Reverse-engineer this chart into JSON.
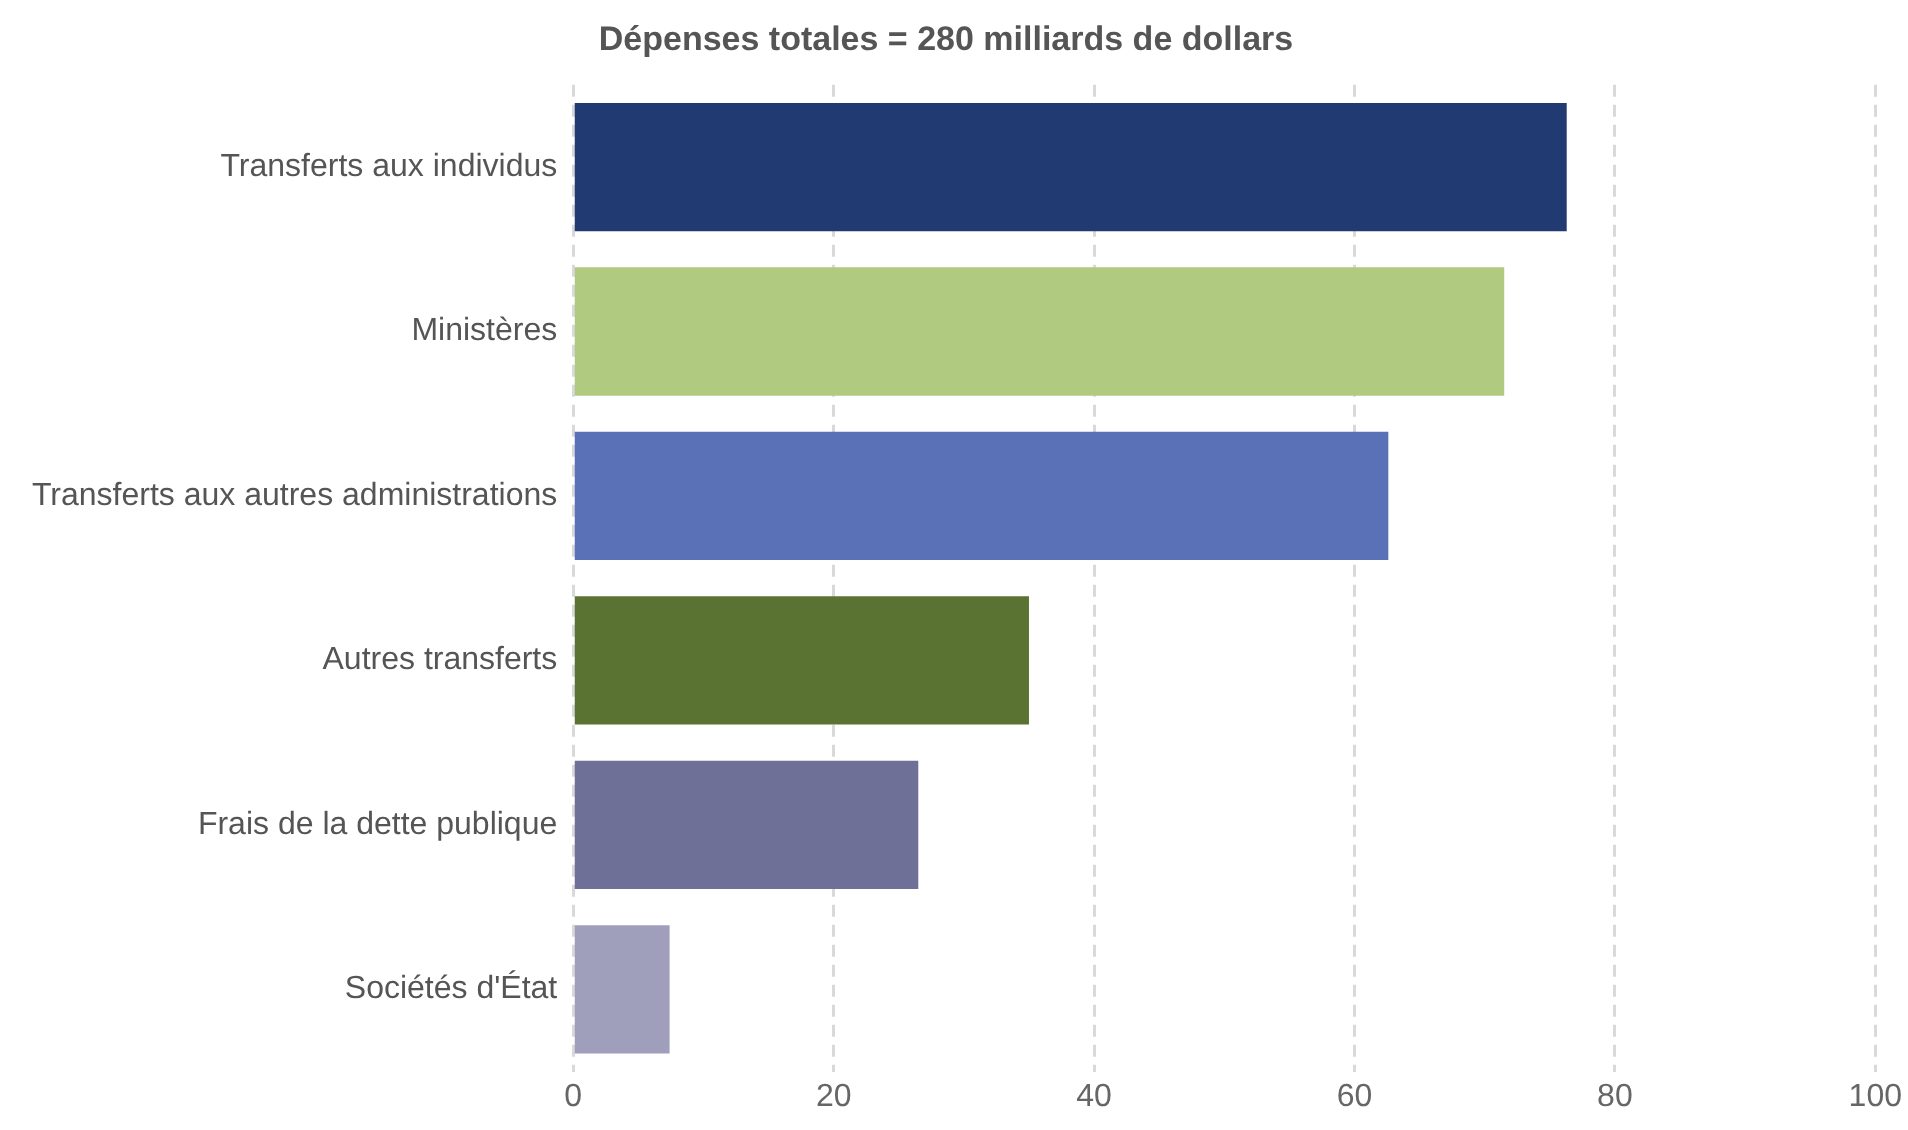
{
  "chart_data": {
    "type": "bar",
    "orientation": "horizontal",
    "title": "Dépenses totales = 280 milliards de dollars",
    "categories": [
      "Transferts aux individus",
      "Ministères",
      "Transferts aux autres administrations",
      "Autres transferts",
      "Frais de la dette publique",
      "Sociétés d'État"
    ],
    "values": [
      76.3,
      71.5,
      62.6,
      35,
      26.5,
      7.4
    ],
    "colors": [
      "#213b72",
      "#b0ca7f",
      "#5b71b7",
      "#5a7333",
      "#6e7098",
      "#9f9ebb"
    ],
    "xlim": [
      0,
      100
    ],
    "xticks": [
      0,
      20,
      40,
      60,
      80,
      100
    ],
    "grid": "x",
    "legend": false
  }
}
